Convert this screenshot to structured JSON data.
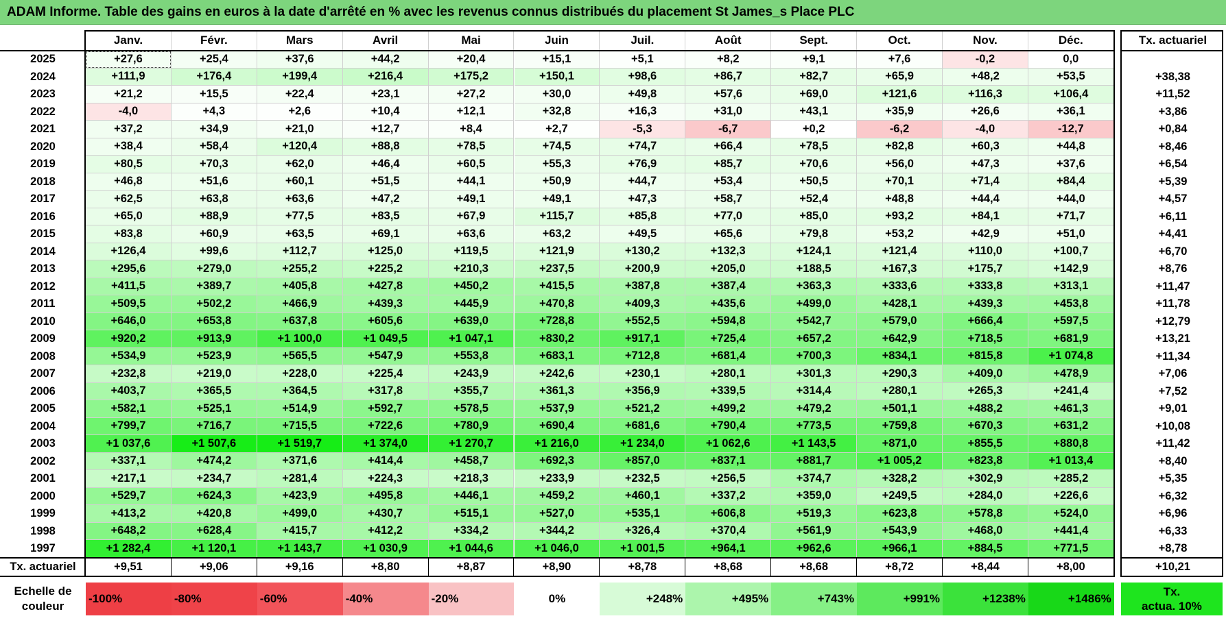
{
  "title": "ADAM Informe. Table des gains en euros à la date d'arrêté en % avec les revenus connus distribués du placement St James_s Place PLC",
  "months": [
    "Janv.",
    "Févr.",
    "Mars",
    "Avril",
    "Mai",
    "Juin",
    "Juil.",
    "Août",
    "Sept.",
    "Oct.",
    "Nov.",
    "Déc."
  ],
  "tx_header": "Tx. actuariel",
  "rows": [
    {
      "year": "2025",
      "values": [
        "+27,6",
        "+25,4",
        "+37,6",
        "+44,2",
        "+20,4",
        "+15,1",
        "+5,1",
        "+8,2",
        "+9,1",
        "+7,6",
        "-0,2",
        "0,0"
      ],
      "tx": ""
    },
    {
      "year": "2024",
      "values": [
        "+111,9",
        "+176,4",
        "+199,4",
        "+216,4",
        "+175,2",
        "+150,1",
        "+98,6",
        "+86,7",
        "+82,7",
        "+65,9",
        "+48,2",
        "+53,5"
      ],
      "tx": "+38,38"
    },
    {
      "year": "2023",
      "values": [
        "+21,2",
        "+15,5",
        "+22,4",
        "+23,1",
        "+27,2",
        "+30,0",
        "+49,8",
        "+57,6",
        "+69,0",
        "+121,6",
        "+116,3",
        "+106,4"
      ],
      "tx": "+11,52"
    },
    {
      "year": "2022",
      "values": [
        "-4,0",
        "+4,3",
        "+2,6",
        "+10,4",
        "+12,1",
        "+32,8",
        "+16,3",
        "+31,0",
        "+43,1",
        "+35,9",
        "+26,6",
        "+36,1"
      ],
      "tx": "+3,86"
    },
    {
      "year": "2021",
      "values": [
        "+37,2",
        "+34,9",
        "+21,0",
        "+12,7",
        "+8,4",
        "+2,7",
        "-5,3",
        "-6,7",
        "+0,2",
        "-6,2",
        "-4,0",
        "-12,7"
      ],
      "tx": "+0,84"
    },
    {
      "year": "2020",
      "values": [
        "+38,4",
        "+58,4",
        "+120,4",
        "+88,8",
        "+78,5",
        "+74,5",
        "+74,7",
        "+66,4",
        "+78,5",
        "+82,8",
        "+60,3",
        "+44,8"
      ],
      "tx": "+8,46"
    },
    {
      "year": "2019",
      "values": [
        "+80,5",
        "+70,3",
        "+62,0",
        "+46,4",
        "+60,5",
        "+55,3",
        "+76,9",
        "+85,7",
        "+70,6",
        "+56,0",
        "+47,3",
        "+37,6"
      ],
      "tx": "+6,54"
    },
    {
      "year": "2018",
      "values": [
        "+46,8",
        "+51,6",
        "+60,1",
        "+51,5",
        "+44,1",
        "+50,9",
        "+44,7",
        "+53,4",
        "+50,5",
        "+70,1",
        "+71,4",
        "+84,4"
      ],
      "tx": "+5,39"
    },
    {
      "year": "2017",
      "values": [
        "+62,5",
        "+63,8",
        "+63,6",
        "+47,2",
        "+49,1",
        "+49,1",
        "+47,3",
        "+58,7",
        "+52,4",
        "+48,8",
        "+44,4",
        "+44,0"
      ],
      "tx": "+4,57"
    },
    {
      "year": "2016",
      "values": [
        "+65,0",
        "+88,9",
        "+77,5",
        "+83,5",
        "+67,9",
        "+115,7",
        "+85,8",
        "+77,0",
        "+85,0",
        "+93,2",
        "+84,1",
        "+71,7"
      ],
      "tx": "+6,11"
    },
    {
      "year": "2015",
      "values": [
        "+83,8",
        "+60,9",
        "+63,5",
        "+69,1",
        "+63,6",
        "+63,2",
        "+49,5",
        "+65,6",
        "+79,8",
        "+53,2",
        "+42,9",
        "+51,0"
      ],
      "tx": "+4,41"
    },
    {
      "year": "2014",
      "values": [
        "+126,4",
        "+99,6",
        "+112,7",
        "+125,0",
        "+119,5",
        "+121,9",
        "+130,2",
        "+132,3",
        "+124,1",
        "+121,4",
        "+110,0",
        "+100,7"
      ],
      "tx": "+6,70"
    },
    {
      "year": "2013",
      "values": [
        "+295,6",
        "+279,0",
        "+255,2",
        "+225,2",
        "+210,3",
        "+237,5",
        "+200,9",
        "+205,0",
        "+188,5",
        "+167,3",
        "+175,7",
        "+142,9"
      ],
      "tx": "+8,76"
    },
    {
      "year": "2012",
      "values": [
        "+411,5",
        "+389,7",
        "+405,8",
        "+427,8",
        "+450,2",
        "+415,5",
        "+387,8",
        "+387,4",
        "+363,3",
        "+333,6",
        "+333,8",
        "+313,1"
      ],
      "tx": "+11,47"
    },
    {
      "year": "2011",
      "values": [
        "+509,5",
        "+502,2",
        "+466,9",
        "+439,3",
        "+445,9",
        "+470,8",
        "+409,3",
        "+435,6",
        "+499,0",
        "+428,1",
        "+439,3",
        "+453,8"
      ],
      "tx": "+11,78"
    },
    {
      "year": "2010",
      "values": [
        "+646,0",
        "+653,8",
        "+637,8",
        "+605,6",
        "+639,0",
        "+728,8",
        "+552,5",
        "+594,8",
        "+542,7",
        "+579,0",
        "+666,4",
        "+597,5"
      ],
      "tx": "+12,79"
    },
    {
      "year": "2009",
      "values": [
        "+920,2",
        "+913,9",
        "+1 100,0",
        "+1 049,5",
        "+1 047,1",
        "+830,2",
        "+917,1",
        "+725,4",
        "+657,2",
        "+642,9",
        "+718,5",
        "+681,9"
      ],
      "tx": "+13,21"
    },
    {
      "year": "2008",
      "values": [
        "+534,9",
        "+523,9",
        "+565,5",
        "+547,9",
        "+553,8",
        "+683,1",
        "+712,8",
        "+681,4",
        "+700,3",
        "+834,1",
        "+815,8",
        "+1 074,8"
      ],
      "tx": "+11,34"
    },
    {
      "year": "2007",
      "values": [
        "+232,8",
        "+219,0",
        "+228,0",
        "+225,4",
        "+243,9",
        "+242,6",
        "+230,1",
        "+280,1",
        "+301,3",
        "+290,3",
        "+409,0",
        "+478,9"
      ],
      "tx": "+7,06"
    },
    {
      "year": "2006",
      "values": [
        "+403,7",
        "+365,5",
        "+364,5",
        "+317,8",
        "+355,7",
        "+361,3",
        "+356,9",
        "+339,5",
        "+314,4",
        "+280,1",
        "+265,3",
        "+241,4"
      ],
      "tx": "+7,52"
    },
    {
      "year": "2005",
      "values": [
        "+582,1",
        "+525,1",
        "+514,9",
        "+592,7",
        "+578,5",
        "+537,9",
        "+521,2",
        "+499,2",
        "+479,2",
        "+501,1",
        "+488,2",
        "+461,3"
      ],
      "tx": "+9,01"
    },
    {
      "year": "2004",
      "values": [
        "+799,7",
        "+716,7",
        "+715,5",
        "+722,6",
        "+780,9",
        "+690,4",
        "+681,6",
        "+790,4",
        "+773,5",
        "+759,8",
        "+670,3",
        "+631,2"
      ],
      "tx": "+10,08"
    },
    {
      "year": "2003",
      "values": [
        "+1 037,6",
        "+1 507,6",
        "+1 519,7",
        "+1 374,0",
        "+1 270,7",
        "+1 216,0",
        "+1 234,0",
        "+1 062,6",
        "+1 143,5",
        "+871,0",
        "+855,5",
        "+880,8"
      ],
      "tx": "+11,42"
    },
    {
      "year": "2002",
      "values": [
        "+337,1",
        "+474,2",
        "+371,6",
        "+414,4",
        "+458,7",
        "+692,3",
        "+857,0",
        "+837,1",
        "+881,7",
        "+1 005,2",
        "+823,8",
        "+1 013,4"
      ],
      "tx": "+8,40"
    },
    {
      "year": "2001",
      "values": [
        "+217,1",
        "+234,7",
        "+281,4",
        "+224,3",
        "+218,3",
        "+233,9",
        "+232,5",
        "+256,5",
        "+374,7",
        "+328,2",
        "+302,9",
        "+285,2"
      ],
      "tx": "+5,35"
    },
    {
      "year": "2000",
      "values": [
        "+529,7",
        "+624,3",
        "+423,9",
        "+495,8",
        "+446,1",
        "+459,2",
        "+460,1",
        "+337,2",
        "+359,0",
        "+249,5",
        "+284,0",
        "+226,6"
      ],
      "tx": "+6,32"
    },
    {
      "year": "1999",
      "values": [
        "+413,2",
        "+420,8",
        "+499,0",
        "+430,7",
        "+515,1",
        "+527,0",
        "+535,1",
        "+606,8",
        "+519,3",
        "+623,8",
        "+578,8",
        "+524,0"
      ],
      "tx": "+6,96"
    },
    {
      "year": "1998",
      "values": [
        "+648,2",
        "+628,4",
        "+415,7",
        "+412,2",
        "+334,2",
        "+344,2",
        "+326,4",
        "+370,4",
        "+561,9",
        "+543,9",
        "+468,0",
        "+441,4"
      ],
      "tx": "+6,33"
    },
    {
      "year": "1997",
      "values": [
        "+1 282,4",
        "+1 120,1",
        "+1 143,7",
        "+1 030,9",
        "+1 044,6",
        "+1 046,0",
        "+1 001,5",
        "+964,1",
        "+962,6",
        "+966,1",
        "+884,5",
        "+771,5"
      ],
      "tx": "+8,78"
    }
  ],
  "footer": {
    "label": "Tx. actuariel",
    "values": [
      "+9,51",
      "+9,06",
      "+9,16",
      "+8,80",
      "+8,87",
      "+8,90",
      "+8,78",
      "+8,68",
      "+8,68",
      "+8,72",
      "+8,44",
      "+8,00"
    ],
    "tx": "+10,21"
  },
  "scale": {
    "label_line1": "Echelle de",
    "label_line2": "couleur",
    "items": [
      {
        "label": "-100%",
        "color": "#ee3f45",
        "align": "left"
      },
      {
        "label": "-80%",
        "color": "#ef4349",
        "align": "left"
      },
      {
        "label": "-60%",
        "color": "#f2545a",
        "align": "left"
      },
      {
        "label": "-40%",
        "color": "#f5888c",
        "align": "left"
      },
      {
        "label": "-20%",
        "color": "#f9c2c4",
        "align": "left"
      },
      {
        "label": "0%",
        "color": "#ffffff",
        "align": "center"
      },
      {
        "label": "+248%",
        "color": "#d7fbd7",
        "align": "right"
      },
      {
        "label": "+495%",
        "color": "#acf5ac",
        "align": "right"
      },
      {
        "label": "+743%",
        "color": "#86f086",
        "align": "right"
      },
      {
        "label": "+991%",
        "color": "#5de95d",
        "align": "right"
      },
      {
        "label": "+1238%",
        "color": "#3be23b",
        "align": "right"
      },
      {
        "label": "+1486%",
        "color": "#18d818",
        "align": "right"
      }
    ],
    "tx_line1": "Tx.",
    "tx_line2": "actua. 10%",
    "tx_color": "#1ee51e"
  },
  "colors": {
    "title_bg": "#7dd57d",
    "negative_light": "#fde4e5",
    "negative_mid": "#fbc9cb"
  }
}
